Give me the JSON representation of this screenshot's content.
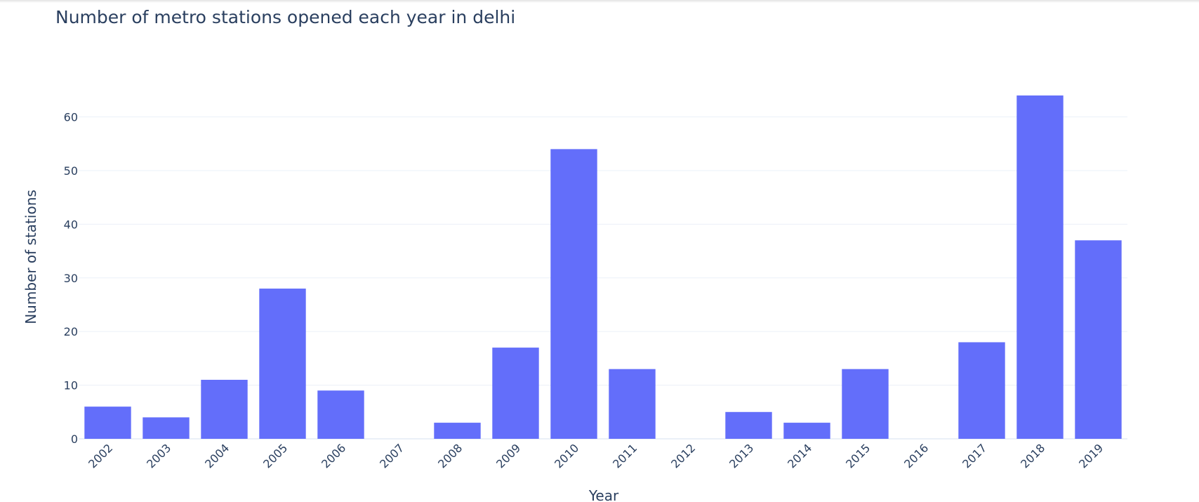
{
  "chart_data": {
    "type": "bar",
    "title": "Number of metro stations opened each year in delhi",
    "xlabel": "Year",
    "ylabel": "Number of stations",
    "categories": [
      "2002",
      "2003",
      "2004",
      "2005",
      "2006",
      "2007",
      "2008",
      "2009",
      "2010",
      "2011",
      "2012",
      "2013",
      "2014",
      "2015",
      "2016",
      "2017",
      "2018",
      "2019"
    ],
    "values": [
      6,
      4,
      11,
      28,
      9,
      0,
      3,
      17,
      54,
      13,
      0,
      5,
      3,
      13,
      0,
      18,
      64,
      37
    ],
    "ylim": [
      0,
      67.4
    ],
    "yticks": [
      "0",
      "10",
      "20",
      "30",
      "40",
      "50",
      "60"
    ],
    "bar_color": "#636efa",
    "grid": true,
    "legend": "none"
  }
}
